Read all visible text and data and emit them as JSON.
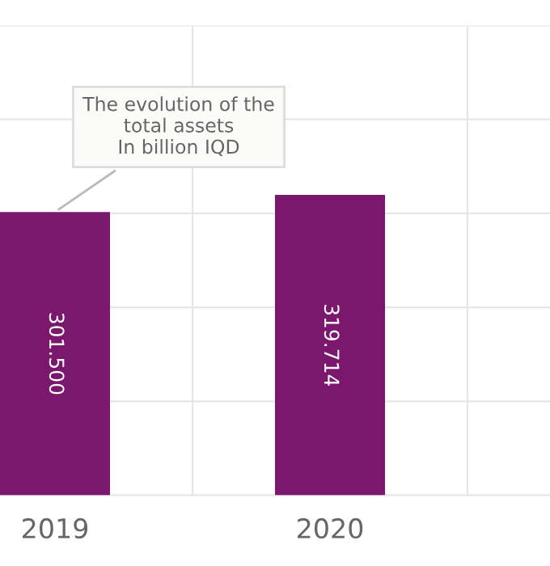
{
  "chart_data": {
    "type": "bar",
    "categories": [
      "2019",
      "2020"
    ],
    "values": [
      301.5,
      319.714
    ],
    "value_labels": [
      "301.500",
      "319.714"
    ],
    "color": "#7b176c",
    "ylim": [
      0,
      500
    ],
    "yticks": [
      {
        "value": 0,
        "label": null
      },
      {
        "value": 100,
        "label": null
      },
      {
        "value": 200,
        "label": null
      },
      {
        "value": 300,
        "label": null
      },
      {
        "value": 400,
        "label": null
      },
      {
        "value": 500,
        "label": null
      }
    ],
    "tick_labels": "x",
    "grid": true,
    "annotations": [
      {
        "text": "The evolution of the\ntotal assets\nIn billion IQD",
        "x": "2019",
        "y": 301.5
      }
    ]
  }
}
